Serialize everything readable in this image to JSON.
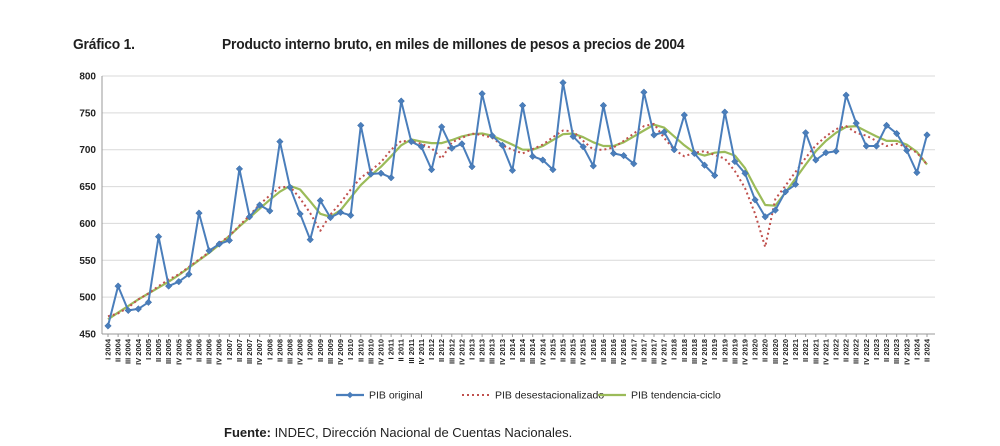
{
  "figure": {
    "label": "Gráfico 1.",
    "title": "Producto interno bruto, en miles de millones de pesos a precios de 2004",
    "source_label": "Fuente:",
    "source_text": " INDEC, Dirección Nacional de Cuentas Nacionales."
  },
  "chart_data": {
    "type": "line",
    "title": "Producto interno bruto, en miles de millones de pesos a precios de 2004",
    "xlabel": "",
    "ylabel": "",
    "ylim": [
      450,
      800
    ],
    "yticks": [
      450,
      500,
      550,
      600,
      650,
      700,
      750,
      800
    ],
    "grid": true,
    "legend_position": "bottom",
    "categories": [
      "I 2004",
      "II 2004",
      "III 2004",
      "IV 2004",
      "I 2005",
      "II 2005",
      "III 2005",
      "IV 2005",
      "I 2006",
      "II 2006",
      "III 2006",
      "IV 2006",
      "I 2007",
      "II 2007",
      "III 2007",
      "IV 2007",
      "I 2008",
      "II 2008",
      "III 2008",
      "IV 2008",
      "I 2009",
      "II 2009",
      "III 2009",
      "IV 2009",
      "I 2010",
      "II 2010",
      "III 2010",
      "IV 2010",
      "I 2011",
      "II 2011",
      "III 2011",
      "IV 2011",
      "I 2012",
      "II 2012",
      "III 2012",
      "IV 2012",
      "I 2013",
      "II 2013",
      "III 2013",
      "IV 2013",
      "I 2014",
      "II 2014",
      "III 2014",
      "IV 2014",
      "I 2015",
      "II 2015",
      "III 2015",
      "IV 2015",
      "I 2016",
      "II 2016",
      "III 2016",
      "IV 2016",
      "I 2017",
      "II 2017",
      "III 2017",
      "IV 2017",
      "I 2018",
      "II 2018",
      "III 2018",
      "IV 2018",
      "I 2019",
      "II 2019",
      "III 2019",
      "IV 2019",
      "I 2020",
      "II 2020",
      "III 2020",
      "IV 2020",
      "I 2021",
      "II 2021",
      "III 2021",
      "IV 2021",
      "I 2022",
      "II 2022",
      "III 2022",
      "IV 2022",
      "I 2023",
      "II 2023",
      "III 2023",
      "IV 2023",
      "I 2024",
      "II 2024"
    ],
    "series": [
      {
        "name": "PIB original",
        "color": "#4a7ebb",
        "style": "solid-diamond",
        "values": [
          461,
          515,
          482,
          484,
          493,
          582,
          515,
          521,
          531,
          614,
          563,
          572,
          577,
          674,
          609,
          625,
          617,
          711,
          649,
          613,
          578,
          631,
          608,
          615,
          611,
          733,
          667,
          668,
          662,
          766,
          711,
          704,
          673,
          731,
          702,
          708,
          677,
          776,
          719,
          706,
          672,
          760,
          691,
          686,
          673,
          791,
          718,
          704,
          678,
          760,
          695,
          692,
          681,
          778,
          720,
          724,
          700,
          747,
          695,
          679,
          665,
          751,
          684,
          668,
          632,
          609,
          618,
          643,
          653,
          723,
          686,
          696,
          698,
          774,
          736,
          705,
          705,
          733,
          722,
          699,
          669,
          720
        ]
      },
      {
        "name": "PIB desestacionalizado",
        "color": "#c0504d",
        "style": "dotted",
        "values": [
          474,
          478,
          486,
          497,
          505,
          515,
          524,
          531,
          541,
          551,
          561,
          573,
          583,
          597,
          611,
          626,
          638,
          649,
          650,
          634,
          614,
          590,
          612,
          628,
          646,
          662,
          672,
          683,
          700,
          712,
          711,
          708,
          702,
          688,
          710,
          716,
          722,
          720,
          716,
          706,
          700,
          695,
          701,
          707,
          717,
          726,
          725,
          712,
          700,
          700,
          703,
          712,
          722,
          732,
          735,
          716,
          700,
          691,
          696,
          698,
          693,
          688,
          671,
          648,
          613,
          568,
          633,
          651,
          670,
          689,
          706,
          718,
          728,
          732,
          723,
          719,
          712,
          705,
          708,
          704,
          696,
          680
        ]
      },
      {
        "name": "PIB tendencia-ciclo",
        "color": "#9bbb59",
        "style": "solid",
        "values": [
          470,
          479,
          488,
          497,
          505,
          513,
          521,
          530,
          540,
          550,
          560,
          571,
          583,
          596,
          608,
          620,
          632,
          643,
          651,
          646,
          630,
          613,
          609,
          618,
          635,
          652,
          665,
          677,
          691,
          706,
          714,
          711,
          709,
          709,
          713,
          718,
          721,
          722,
          719,
          713,
          707,
          700,
          700,
          705,
          713,
          721,
          722,
          717,
          710,
          705,
          705,
          710,
          718,
          726,
          734,
          730,
          718,
          706,
          696,
          692,
          696,
          697,
          692,
          675,
          649,
          625,
          624,
          642,
          661,
          680,
          698,
          712,
          723,
          731,
          732,
          725,
          718,
          712,
          712,
          707,
          697,
          680
        ]
      }
    ]
  }
}
